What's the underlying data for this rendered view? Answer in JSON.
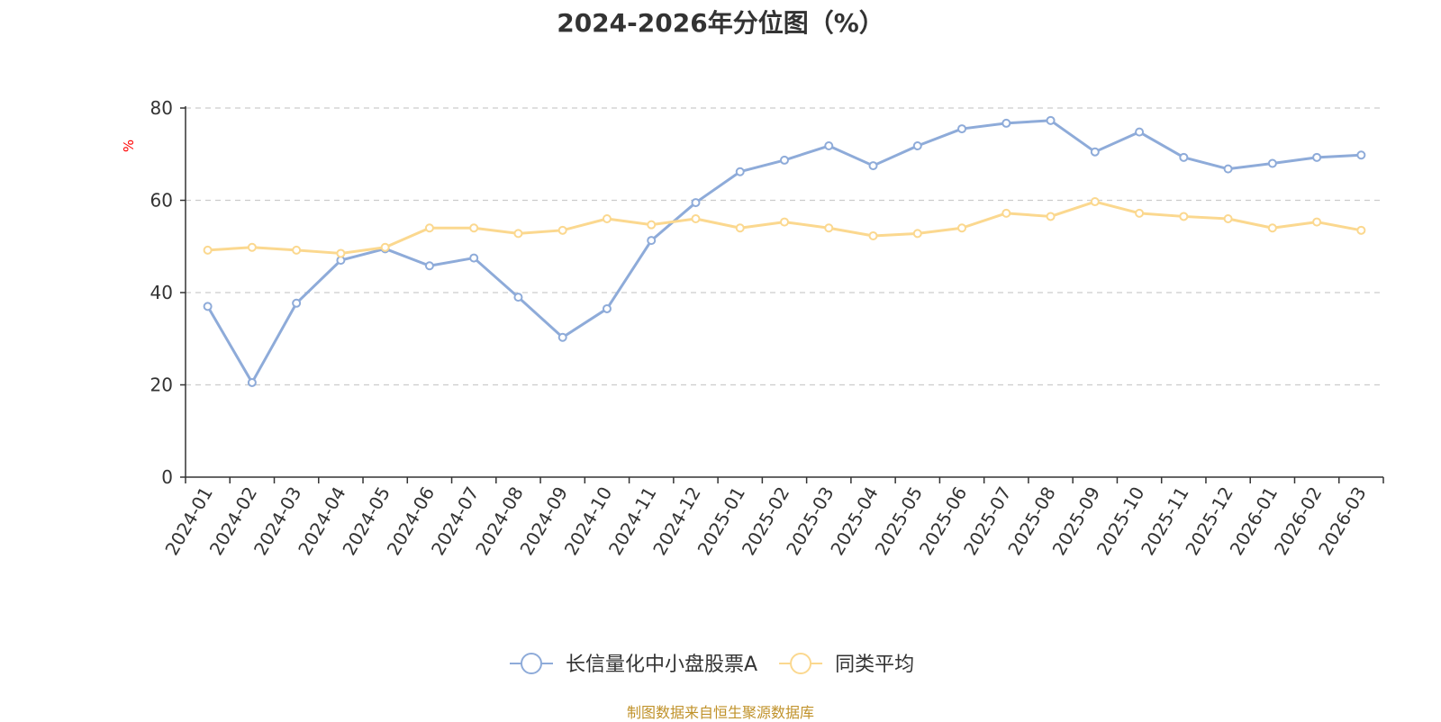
{
  "chart_data": {
    "type": "line",
    "title": "2024-2026年分位图（%）",
    "ylabel": "%",
    "xlabel": "",
    "ylim": [
      0,
      80
    ],
    "yticks": [
      0,
      20,
      40,
      60,
      80
    ],
    "grid": true,
    "legend_position": "bottom",
    "categories": [
      "2024-01",
      "2024-02",
      "2024-03",
      "2024-04",
      "2024-05",
      "2024-06",
      "2024-07",
      "2024-08",
      "2024-09",
      "2024-10",
      "2024-11",
      "2024-12",
      "2025-01",
      "2025-02",
      "2025-03",
      "2025-04",
      "2025-05",
      "2025-06",
      "2025-07",
      "2025-08",
      "2025-09",
      "2025-10",
      "2025-11",
      "2025-12",
      "2026-01",
      "2026-02",
      "2026-03"
    ],
    "series": [
      {
        "name": "长信量化中小盘股票A",
        "color": "#8eabd9",
        "values": [
          37.0,
          20.5,
          37.7,
          47.0,
          49.5,
          45.8,
          47.5,
          39.0,
          30.3,
          36.5,
          51.3,
          59.5,
          66.2,
          68.7,
          71.8,
          67.5,
          71.8,
          75.5,
          76.7,
          77.3,
          70.5,
          74.8,
          69.3,
          66.8,
          68.0,
          69.3,
          69.8
        ]
      },
      {
        "name": "同类平均",
        "color": "#fbd88f",
        "values": [
          49.2,
          49.8,
          49.2,
          48.5,
          49.8,
          54.0,
          54.0,
          52.8,
          53.5,
          56.0,
          54.7,
          56.0,
          54.0,
          55.3,
          54.0,
          52.3,
          52.8,
          54.0,
          57.2,
          56.5,
          59.7,
          57.2,
          56.5,
          56.0,
          54.0,
          55.3,
          53.5
        ]
      }
    ],
    "source": "制图数据来自恒生聚源数据库",
    "colors": {
      "axis": "#333333",
      "grid": "#cccccc",
      "unit": "#ff0000",
      "source": "#c0922a"
    }
  }
}
